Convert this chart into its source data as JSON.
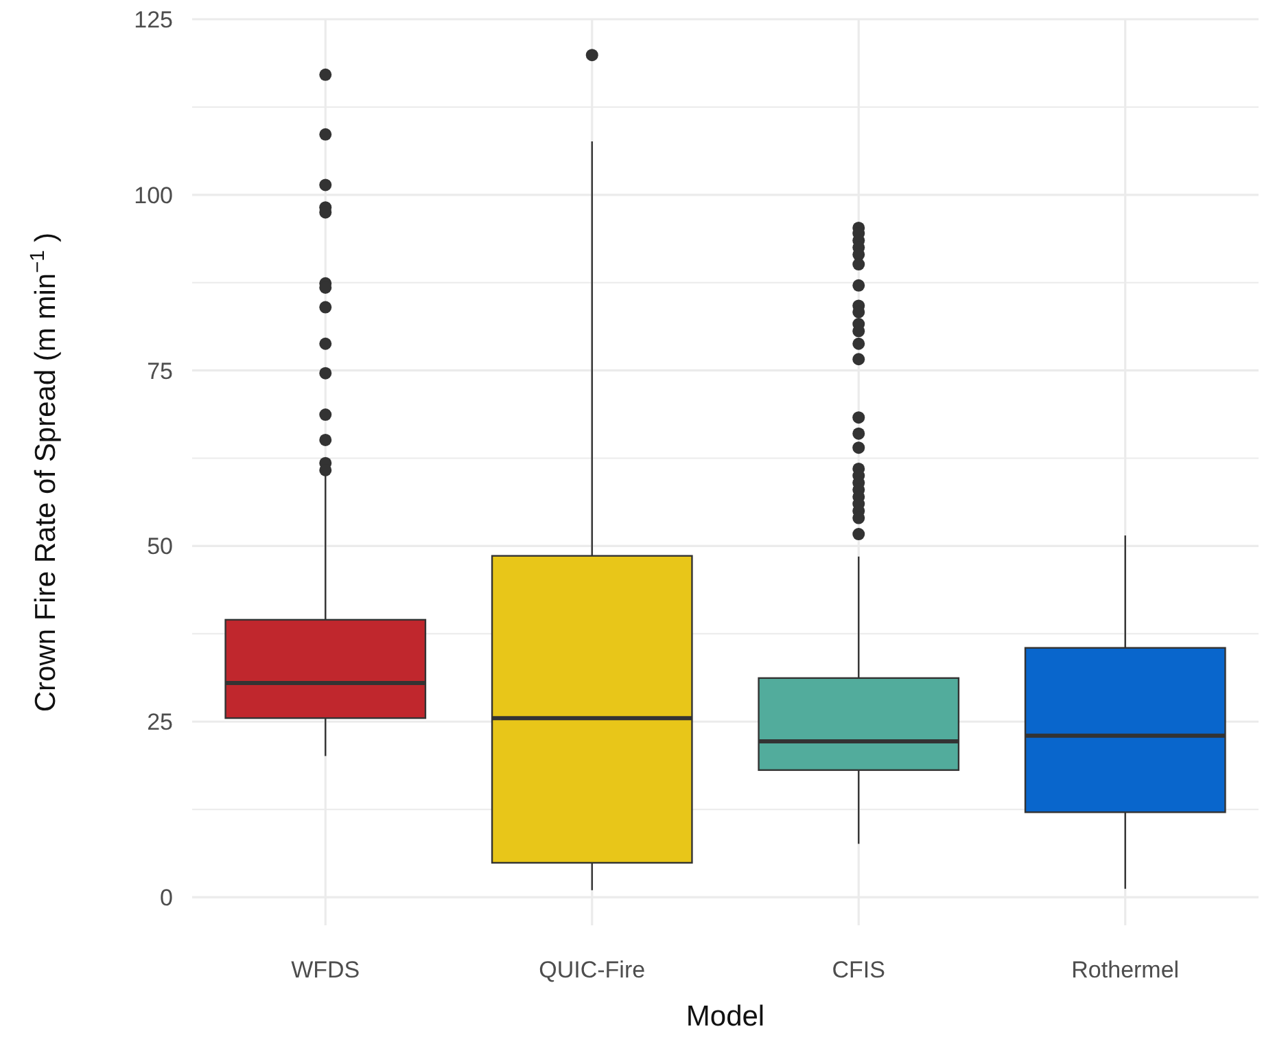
{
  "chart_data": {
    "type": "box",
    "xlabel": "Model",
    "ylabel": "Crown Fire Rate of Spread (m min$^{−1}$ )",
    "categories": [
      "WFDS",
      "QUIC-Fire",
      "CFIS",
      "Rothermel"
    ],
    "colors": [
      "#c0272d",
      "#e8c619",
      "#52ac9c",
      "#0966cc"
    ],
    "boxes": [
      {
        "low": 20.1,
        "q1": 25.5,
        "median": 30.5,
        "q3": 39.5,
        "high": 60.5,
        "outliers": [
          117.1,
          108.6,
          101.4,
          98.2,
          97.5,
          87.4,
          86.8,
          84.0,
          78.8,
          74.6,
          68.7,
          65.1,
          61.8,
          60.8
        ]
      },
      {
        "low": 1.0,
        "q1": 4.9,
        "median": 25.5,
        "q3": 48.6,
        "high": 107.6,
        "outliers": [
          119.9
        ]
      },
      {
        "low": 7.6,
        "q1": 18.1,
        "median": 22.2,
        "q3": 31.2,
        "high": 48.5,
        "outliers": [
          95.3,
          94.5,
          93.5,
          92.5,
          91.5,
          90.1,
          87.1,
          84.2,
          83.3,
          81.6,
          80.6,
          78.8,
          76.6,
          68.3,
          66.0,
          64.0,
          61.0,
          60.0,
          59.0,
          58.0,
          57.0,
          56.0,
          55.0,
          54.0,
          51.7
        ]
      },
      {
        "low": 1.2,
        "q1": 12.1,
        "median": 23.0,
        "q3": 35.5,
        "high": 51.5
      }
    ],
    "ylim": [
      -4,
      125
    ],
    "yticks": [
      0,
      {
        "value": 12.5,
        "label": null
      },
      25,
      {
        "value": 37.5,
        "label": null
      },
      50,
      {
        "value": 62.5,
        "label": null
      },
      75,
      {
        "value": 87.5,
        "label": null
      },
      100,
      {
        "value": 112.5,
        "label": null
      },
      125
    ],
    "grid": true
  }
}
